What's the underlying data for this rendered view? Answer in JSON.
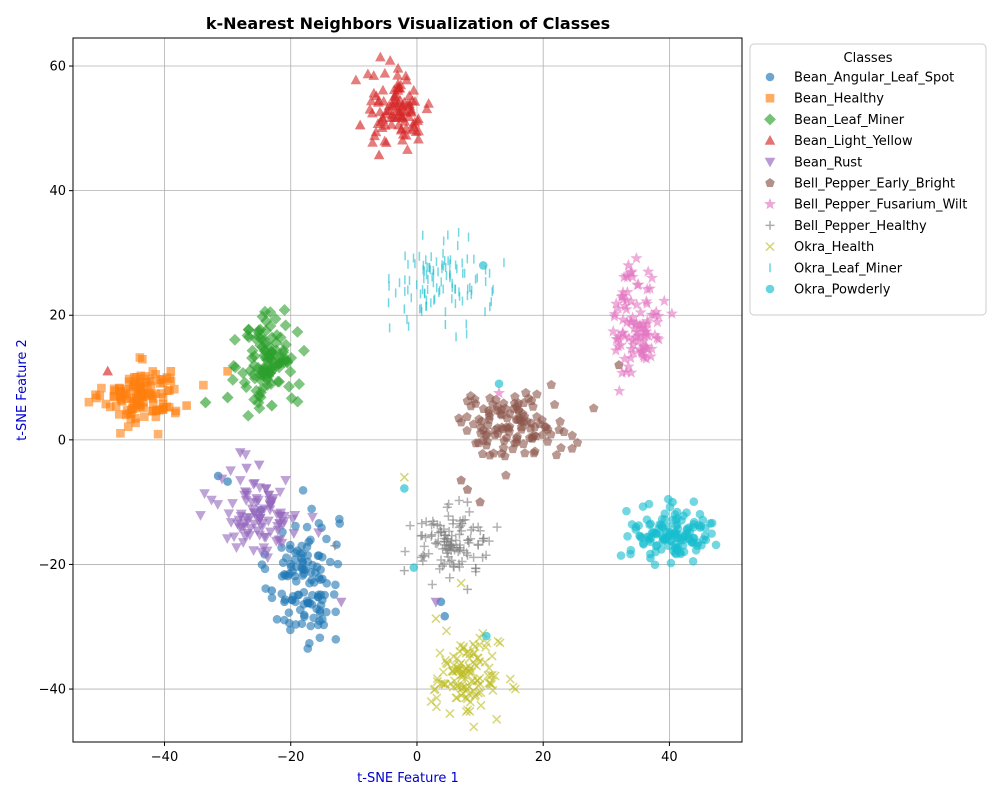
{
  "chart_data": {
    "type": "scatter",
    "title": "k-Nearest Neighbors Visualization of Classes",
    "xlabel": "t-SNE Feature 1",
    "ylabel": "t-SNE Feature 2",
    "xlim": [
      -54.5,
      51.5
    ],
    "ylim": [
      -48.5,
      64.5
    ],
    "xticks": [
      -40,
      -20,
      0,
      20,
      40
    ],
    "yticks": [
      -40,
      -20,
      0,
      20,
      40,
      60
    ],
    "xtick_labels": [
      "−40",
      "−20",
      "0",
      "20",
      "40"
    ],
    "ytick_labels": [
      "−40",
      "−20",
      "0",
      "20",
      "40",
      "60"
    ],
    "grid": true,
    "legend_title": "Classes",
    "legend_position": "outside-right",
    "series": [
      {
        "name": "Bean_Angular_Leaf_Spot",
        "color": "#1f77b4",
        "marker": "circle",
        "clusters": [
          {
            "cx": -18,
            "cy": -22,
            "sx": 2.8,
            "sy": 5.5,
            "n": 120
          }
        ],
        "points": [
          [
            -31.5,
            -5.8
          ],
          [
            -30,
            -6.7
          ],
          [
            -23,
            -24.2
          ],
          [
            3.8,
            -26
          ],
          [
            4.4,
            -28.3
          ],
          [
            -21,
            -26
          ]
        ]
      },
      {
        "name": "Bean_Healthy",
        "color": "#ff7f0e",
        "marker": "square",
        "clusters": [
          {
            "cx": -43.5,
            "cy": 7,
            "sx": 3.0,
            "sy": 2.3,
            "n": 120
          }
        ],
        "points": [
          [
            -36.5,
            5.5
          ],
          [
            -30,
            11
          ],
          [
            -39,
            11
          ]
        ]
      },
      {
        "name": "Bean_Leaf_Miner",
        "color": "#2ca02c",
        "marker": "diamond",
        "clusters": [
          {
            "cx": -23.5,
            "cy": 13,
            "sx": 2.2,
            "sy": 4.0,
            "n": 110
          }
        ],
        "points": [
          [
            -33.5,
            6
          ],
          [
            -30,
            6.8
          ],
          [
            -23,
            5.5
          ]
        ]
      },
      {
        "name": "Bean_Light_Yellow",
        "color": "#d62728",
        "marker": "triangle-up",
        "clusters": [
          {
            "cx": -3,
            "cy": 53,
            "sx": 2.6,
            "sy": 3.0,
            "n": 100
          }
        ],
        "points": [
          [
            -49,
            11
          ],
          [
            -6,
            45.7
          ],
          [
            -9,
            50.5
          ]
        ]
      },
      {
        "name": "Bean_Rust",
        "color": "#9467bd",
        "marker": "triangle-down",
        "clusters": [
          {
            "cx": -25,
            "cy": -12,
            "sx": 3.2,
            "sy": 3.2,
            "n": 100
          }
        ],
        "points": [
          [
            -28,
            -2
          ],
          [
            -27,
            -4.5
          ],
          [
            -25,
            -4
          ],
          [
            -12,
            -26
          ],
          [
            -19.5,
            -15
          ],
          [
            3,
            -26
          ]
        ]
      },
      {
        "name": "Bell_Pepper_Early_Bright",
        "color": "#8c564b",
        "marker": "pentagon",
        "clusters": [
          {
            "cx": 15,
            "cy": 2.5,
            "sx": 4.5,
            "sy": 2.5,
            "n": 120
          }
        ],
        "points": [
          [
            32,
            12
          ],
          [
            7,
            -6.5
          ],
          [
            10,
            -10
          ],
          [
            8,
            -8
          ]
        ]
      },
      {
        "name": "Bell_Pepper_Fusarium_Wilt",
        "color": "#e377c2",
        "marker": "star",
        "clusters": [
          {
            "cx": 35,
            "cy": 19,
            "sx": 1.9,
            "sy": 4.5,
            "n": 100
          }
        ],
        "points": [
          [
            33.5,
            28
          ],
          [
            34,
            27
          ],
          [
            13,
            7.5
          ]
        ]
      },
      {
        "name": "Bell_Pepper_Healthy",
        "color": "#7f7f7f",
        "marker": "plus",
        "clusters": [
          {
            "cx": 5.5,
            "cy": -16.5,
            "sx": 3.2,
            "sy": 2.4,
            "n": 110
          }
        ],
        "points": [
          [
            -13,
            -17
          ],
          [
            8,
            -10
          ],
          [
            -2,
            -21
          ],
          [
            8,
            -24
          ]
        ]
      },
      {
        "name": "Okra_Health",
        "color": "#bcbd22",
        "marker": "x",
        "clusters": [
          {
            "cx": 8,
            "cy": -38,
            "sx": 2.6,
            "sy": 3.0,
            "n": 120
          }
        ],
        "points": [
          [
            -2,
            -6
          ],
          [
            3,
            -28.7
          ],
          [
            7,
            -23
          ]
        ]
      },
      {
        "name": "Okra_Leaf_Miner",
        "color": "#17becf",
        "marker": "vline",
        "clusters": [
          {
            "cx": 4,
            "cy": 25.5,
            "sx": 3.8,
            "sy": 3.3,
            "n": 110
          }
        ],
        "points": [
          [
            4.5,
            18.5
          ],
          [
            -4.5,
            22
          ],
          [
            -2,
            21
          ]
        ]
      },
      {
        "name": "Okra_Powderly",
        "color": "#17becf",
        "marker": "circle",
        "clusters": [
          {
            "cx": 40.5,
            "cy": -15,
            "sx": 3.3,
            "sy": 2.1,
            "n": 130
          }
        ],
        "points": [
          [
            10.5,
            28
          ],
          [
            13,
            9
          ],
          [
            -2,
            -7.8
          ],
          [
            -0.5,
            -20.5
          ],
          [
            11,
            -31.5
          ],
          [
            40.5,
            -10
          ],
          [
            37,
            -19
          ]
        ]
      }
    ]
  }
}
